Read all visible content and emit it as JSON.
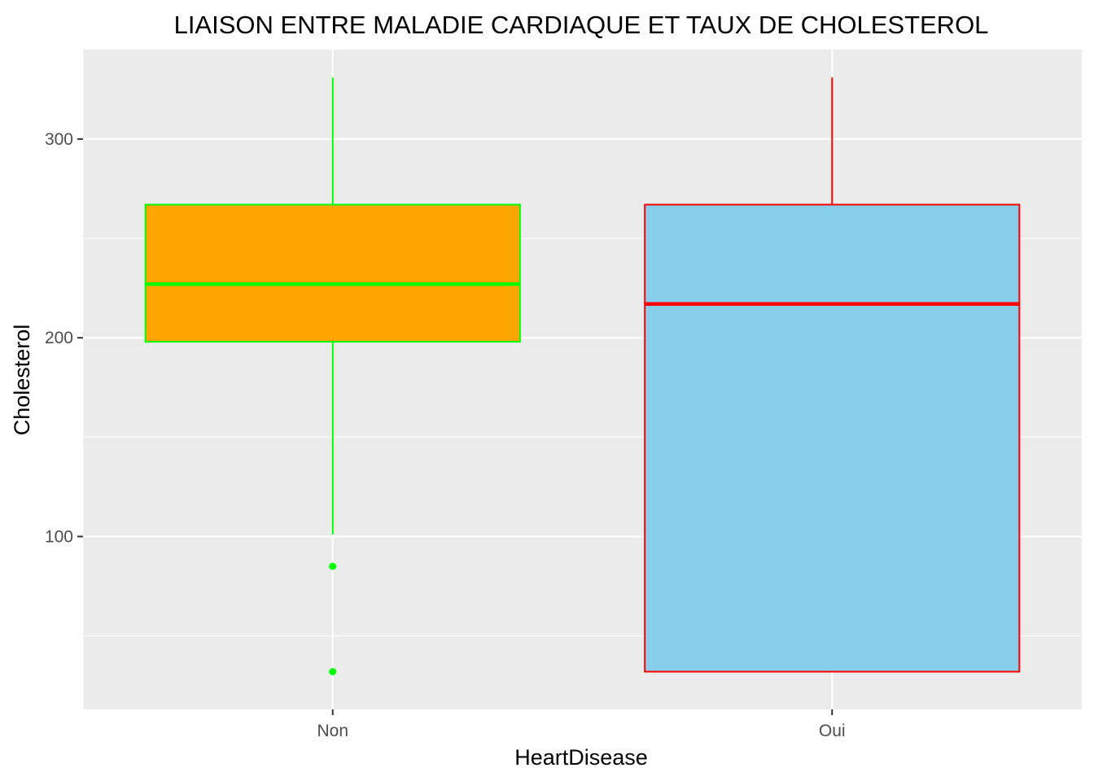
{
  "chart_data": {
    "type": "box",
    "title": "LIAISON ENTRE MALADIE CARDIAQUE ET TAUX DE CHOLESTEROL",
    "xlabel": "HeartDisease",
    "ylabel": "Cholesterol",
    "categories": [
      "Non",
      "Oui"
    ],
    "ylim": [
      13,
      345
    ],
    "y_ticks": [
      100,
      200,
      300
    ],
    "grid": true,
    "background": "#EBEBEB",
    "boxes": [
      {
        "category": "Non",
        "fill": "#FFA500",
        "stroke": "#00FF00",
        "whisker_low": 101,
        "q1": 198,
        "median": 227,
        "q3": 267,
        "whisker_high": 331,
        "outliers": [
          85,
          32
        ]
      },
      {
        "category": "Oui",
        "fill": "#87CEEB",
        "stroke": "#FF0000",
        "whisker_low": 32,
        "q1": 32,
        "median": 217,
        "q3": 267,
        "whisker_high": 331,
        "outliers": []
      }
    ]
  }
}
